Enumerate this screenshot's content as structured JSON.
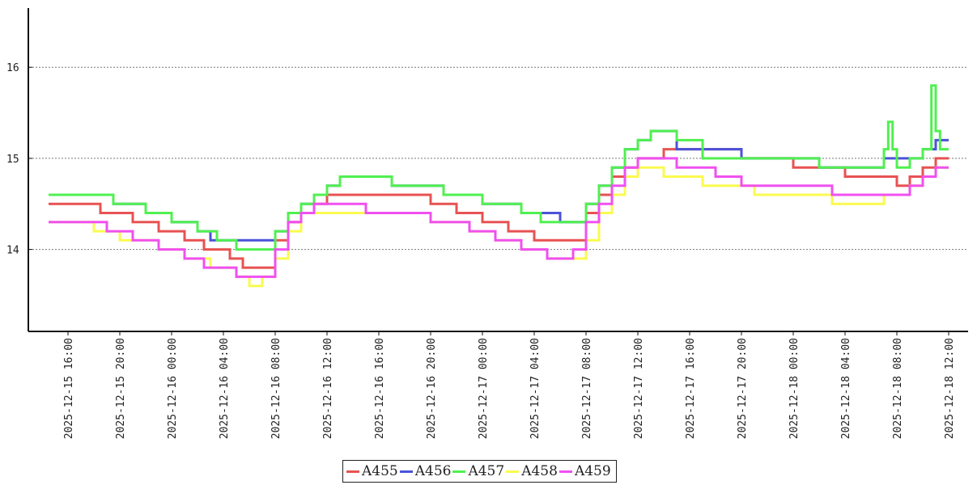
{
  "chart_data": {
    "type": "line",
    "step": true,
    "title": "",
    "xlabel": "",
    "ylabel": "",
    "ylim": [
      13.1,
      16.65
    ],
    "xlim": [
      "2025-12-15 13:00",
      "2025-12-18 13:30"
    ],
    "y_ticks": [
      "14",
      "15",
      "16"
    ],
    "x_ticks": [
      "2025-12-15 16:00",
      "2025-12-15 20:00",
      "2025-12-16 00:00",
      "2025-12-16 04:00",
      "2025-12-16 08:00",
      "2025-12-16 12:00",
      "2025-12-16 16:00",
      "2025-12-16 20:00",
      "2025-12-17 00:00",
      "2025-12-17 04:00",
      "2025-12-17 08:00",
      "2025-12-17 12:00",
      "2025-12-17 16:00",
      "2025-12-17 20:00",
      "2025-12-18 00:00",
      "2025-12-18 04:00",
      "2025-12-18 08:00",
      "2025-12-18 12:00"
    ],
    "grid": "horizontal dotted",
    "legend_position": "bottom-center",
    "series": [
      {
        "name": "A455",
        "color": "#e85252",
        "x": [
          "2025-12-15 14:30",
          "2025-12-15 18:30",
          "2025-12-15 21:00",
          "2025-12-15 23:00",
          "2025-12-16 01:00",
          "2025-12-16 02:30",
          "2025-12-16 04:30",
          "2025-12-16 05:30",
          "2025-12-16 08:00",
          "2025-12-16 09:00",
          "2025-12-16 10:00",
          "2025-12-16 11:00",
          "2025-12-16 12:00",
          "2025-12-16 14:00",
          "2025-12-16 20:00",
          "2025-12-16 22:00",
          "2025-12-17 00:00",
          "2025-12-17 02:00",
          "2025-12-17 04:00",
          "2025-12-17 07:00",
          "2025-12-17 08:00",
          "2025-12-17 09:00",
          "2025-12-17 10:00",
          "2025-12-17 11:00",
          "2025-12-17 12:00",
          "2025-12-17 14:00",
          "2025-12-17 20:00",
          "2025-12-18 00:00",
          "2025-12-18 04:00",
          "2025-12-18 08:00",
          "2025-12-18 09:00",
          "2025-12-18 10:00",
          "2025-12-18 11:00",
          "2025-12-18 12:00"
        ],
        "values": [
          14.5,
          14.4,
          14.3,
          14.2,
          14.1,
          14.0,
          13.9,
          13.8,
          14.1,
          14.3,
          14.4,
          14.5,
          14.6,
          14.6,
          14.5,
          14.4,
          14.3,
          14.2,
          14.1,
          14.1,
          14.4,
          14.6,
          14.8,
          14.9,
          15.0,
          15.1,
          15.0,
          14.9,
          14.8,
          14.7,
          14.8,
          14.9,
          15.0,
          15.0
        ]
      },
      {
        "name": "A456",
        "color": "#4b52d8",
        "x": [
          "2025-12-15 14:30",
          "2025-12-15 19:30",
          "2025-12-15 22:00",
          "2025-12-16 00:00",
          "2025-12-16 02:00",
          "2025-12-16 03:00",
          "2025-12-16 07:00",
          "2025-12-16 08:00",
          "2025-12-16 09:00",
          "2025-12-16 10:00",
          "2025-12-16 11:00",
          "2025-12-16 12:00",
          "2025-12-16 13:00",
          "2025-12-16 17:00",
          "2025-12-16 21:00",
          "2025-12-17 00:00",
          "2025-12-17 03:00",
          "2025-12-17 06:00",
          "2025-12-17 07:00",
          "2025-12-17 08:00",
          "2025-12-17 09:00",
          "2025-12-17 10:00",
          "2025-12-17 11:00",
          "2025-12-17 12:00",
          "2025-12-17 13:00",
          "2025-12-17 15:00",
          "2025-12-17 20:00",
          "2025-12-18 02:00",
          "2025-12-18 07:00",
          "2025-12-18 10:00",
          "2025-12-18 11:00",
          "2025-12-18 12:00"
        ],
        "values": [
          14.6,
          14.5,
          14.4,
          14.3,
          14.2,
          14.1,
          14.1,
          14.2,
          14.4,
          14.5,
          14.6,
          14.7,
          14.8,
          14.7,
          14.6,
          14.5,
          14.4,
          14.3,
          14.3,
          14.5,
          14.7,
          14.9,
          15.1,
          15.2,
          15.3,
          15.1,
          15.0,
          14.9,
          15.0,
          15.1,
          15.2,
          15.2
        ]
      },
      {
        "name": "A457",
        "color": "#50f050",
        "x": [
          "2025-12-15 14:30",
          "2025-12-15 19:30",
          "2025-12-15 22:00",
          "2025-12-16 00:00",
          "2025-12-16 02:00",
          "2025-12-16 03:30",
          "2025-12-16 05:00",
          "2025-12-16 07:00",
          "2025-12-16 08:00",
          "2025-12-16 09:00",
          "2025-12-16 10:00",
          "2025-12-16 11:00",
          "2025-12-16 12:00",
          "2025-12-16 13:00",
          "2025-12-16 17:00",
          "2025-12-16 21:00",
          "2025-12-17 00:00",
          "2025-12-17 03:00",
          "2025-12-17 04:30",
          "2025-12-17 07:00",
          "2025-12-17 08:00",
          "2025-12-17 09:00",
          "2025-12-17 10:00",
          "2025-12-17 11:00",
          "2025-12-17 12:00",
          "2025-12-17 13:00",
          "2025-12-17 15:00",
          "2025-12-17 17:00",
          "2025-12-18 02:00",
          "2025-12-18 07:00",
          "2025-12-18 07:20",
          "2025-12-18 07:40",
          "2025-12-18 08:00",
          "2025-12-18 08:30",
          "2025-12-18 09:00",
          "2025-12-18 10:00",
          "2025-12-18 10:40",
          "2025-12-18 11:00",
          "2025-12-18 11:20",
          "2025-12-18 12:00"
        ],
        "values": [
          14.6,
          14.5,
          14.4,
          14.3,
          14.2,
          14.1,
          14.0,
          14.0,
          14.2,
          14.4,
          14.5,
          14.6,
          14.7,
          14.8,
          14.7,
          14.6,
          14.5,
          14.4,
          14.3,
          14.3,
          14.5,
          14.7,
          14.9,
          15.1,
          15.2,
          15.3,
          15.2,
          15.0,
          14.9,
          15.1,
          15.4,
          15.1,
          14.9,
          14.9,
          15.0,
          15.1,
          15.8,
          15.3,
          15.1,
          15.1
        ]
      },
      {
        "name": "A458",
        "color": "#fafa50",
        "x": [
          "2025-12-15 14:30",
          "2025-12-15 18:00",
          "2025-12-15 20:00",
          "2025-12-15 23:00",
          "2025-12-16 01:00",
          "2025-12-16 03:00",
          "2025-12-16 05:00",
          "2025-12-16 06:00",
          "2025-12-16 07:00",
          "2025-12-16 08:00",
          "2025-12-16 09:00",
          "2025-12-16 10:00",
          "2025-12-16 20:00",
          "2025-12-16 23:00",
          "2025-12-17 01:00",
          "2025-12-17 03:00",
          "2025-12-17 05:00",
          "2025-12-17 07:00",
          "2025-12-17 08:00",
          "2025-12-17 09:00",
          "2025-12-17 10:00",
          "2025-12-17 11:00",
          "2025-12-17 12:00",
          "2025-12-17 14:00",
          "2025-12-17 17:00",
          "2025-12-17 21:00",
          "2025-12-18 03:00",
          "2025-12-18 07:00",
          "2025-12-18 09:00",
          "2025-12-18 10:00",
          "2025-12-18 11:00",
          "2025-12-18 12:00"
        ],
        "values": [
          14.3,
          14.2,
          14.1,
          14.0,
          13.9,
          13.8,
          13.7,
          13.6,
          13.7,
          13.9,
          14.2,
          14.4,
          14.3,
          14.2,
          14.1,
          14.0,
          13.9,
          13.9,
          14.1,
          14.4,
          14.6,
          14.8,
          14.9,
          14.8,
          14.7,
          14.6,
          14.5,
          14.6,
          14.7,
          14.8,
          14.9,
          14.9
        ]
      },
      {
        "name": "A459",
        "color": "#f050f0",
        "x": [
          "2025-12-15 14:30",
          "2025-12-15 19:00",
          "2025-12-15 21:00",
          "2025-12-15 23:00",
          "2025-12-16 01:00",
          "2025-12-16 02:30",
          "2025-12-16 05:00",
          "2025-12-16 07:00",
          "2025-12-16 08:00",
          "2025-12-16 09:00",
          "2025-12-16 10:00",
          "2025-12-16 11:00",
          "2025-12-16 15:00",
          "2025-12-16 20:00",
          "2025-12-16 23:00",
          "2025-12-17 01:00",
          "2025-12-17 03:00",
          "2025-12-17 05:00",
          "2025-12-17 06:00",
          "2025-12-17 07:00",
          "2025-12-17 08:00",
          "2025-12-17 09:00",
          "2025-12-17 10:00",
          "2025-12-17 11:00",
          "2025-12-17 12:00",
          "2025-12-17 15:00",
          "2025-12-17 18:00",
          "2025-12-17 20:00",
          "2025-12-18 03:00",
          "2025-12-18 09:00",
          "2025-12-18 10:00",
          "2025-12-18 11:00",
          "2025-12-18 12:00"
        ],
        "values": [
          14.3,
          14.2,
          14.1,
          14.0,
          13.9,
          13.8,
          13.7,
          13.7,
          14.0,
          14.3,
          14.4,
          14.5,
          14.4,
          14.3,
          14.2,
          14.1,
          14.0,
          13.9,
          13.9,
          14.0,
          14.3,
          14.5,
          14.7,
          14.9,
          15.0,
          14.9,
          14.8,
          14.7,
          14.6,
          14.7,
          14.8,
          14.9,
          14.9
        ]
      }
    ]
  }
}
